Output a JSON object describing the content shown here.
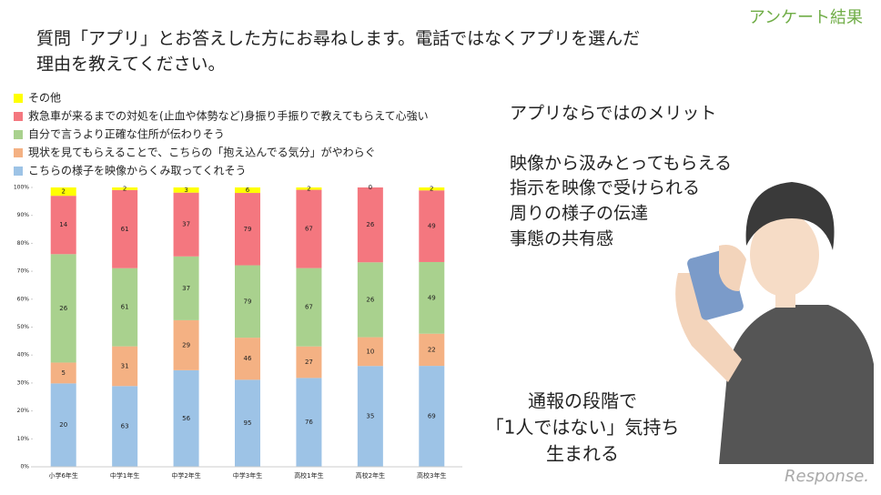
{
  "header": {
    "question": [
      "質問「アプリ」とお答えした方にお尋ねします。電話ではなくアプリを選んだ",
      "理由を教えてください。"
    ],
    "tag": "アンケート結果"
  },
  "chart_data": {
    "type": "bar",
    "stacked": "percent",
    "categories": [
      "小学6年生",
      "中学1年生",
      "中学2年生",
      "中学3年生",
      "高校1年生",
      "高校2年生",
      "高校3年生"
    ],
    "series": [
      {
        "name": "こちらの様子を映像からくみ取ってくれそう",
        "color": "#9dc3e6",
        "values": [
          20,
          63,
          56,
          95,
          76,
          35,
          69
        ]
      },
      {
        "name": "現状を見てもらえることで、こちらの「抱え込んでる気分」がやわらぐ",
        "color": "#f4b183",
        "values": [
          5,
          31,
          29,
          46,
          27,
          10,
          22
        ]
      },
      {
        "name": "自分で言うより正確な住所が伝わりそう",
        "color": "#a9d18e",
        "values": [
          26,
          61,
          37,
          79,
          67,
          26,
          49
        ]
      },
      {
        "name": "救急車が来るまでの対処を(止血や体勢など)身振り手振りで教えてもらえて心強い",
        "color": "#f4777f",
        "values": [
          14,
          61,
          37,
          79,
          67,
          26,
          49
        ]
      },
      {
        "name": "その他",
        "color": "#ffff00",
        "values": [
          2,
          2,
          3,
          6,
          2,
          0,
          2
        ]
      }
    ],
    "ylim": [
      0,
      100
    ],
    "yticks": [
      {
        "value": 0,
        "label": "0%"
      },
      {
        "value": 10,
        "label": "10%"
      },
      {
        "value": 20,
        "label": "20%"
      },
      {
        "value": 30,
        "label": "30%"
      },
      {
        "value": 40,
        "label": "40%"
      },
      {
        "value": 50,
        "label": "50%"
      },
      {
        "value": 60,
        "label": "60%"
      },
      {
        "value": 70,
        "label": "70%"
      },
      {
        "value": 80,
        "label": "80%"
      },
      {
        "value": 90,
        "label": "90%"
      },
      {
        "value": 100,
        "label": "100%"
      }
    ]
  },
  "notes": {
    "merit_title": "アプリならではのメリット",
    "merits": [
      "映像から汲みとってもらえる",
      "指示を映像で受けられる",
      "周りの様子の伝達",
      "事態の共有感"
    ],
    "conclusion": [
      "通報の段階で",
      "「1人ではない」気持ち",
      "生まれる"
    ]
  },
  "logo": "Response."
}
